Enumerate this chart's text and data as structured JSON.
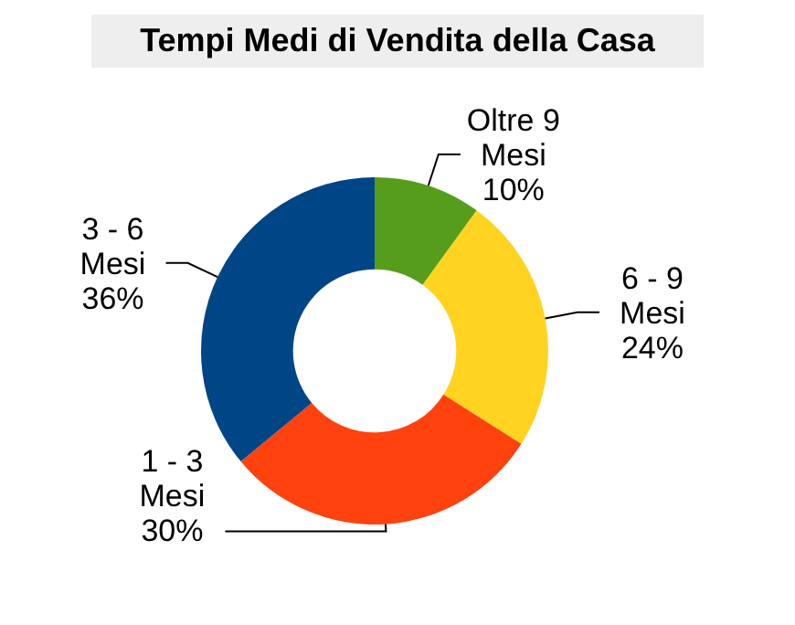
{
  "chart_data": {
    "type": "donut",
    "title": "Tempi Medi di Vendita della Casa",
    "categories": [
      "Oltre 9 Mesi",
      "6 - 9 Mesi",
      "1 - 3 Mesi",
      "3 - 6 Mesi"
    ],
    "values": [
      10,
      24,
      30,
      36
    ],
    "value_labels": [
      "10%",
      "24%",
      "30%",
      "36%"
    ],
    "colors": [
      "#579d1c",
      "#ffd320",
      "#ff420e",
      "#004586"
    ],
    "legend": false
  }
}
